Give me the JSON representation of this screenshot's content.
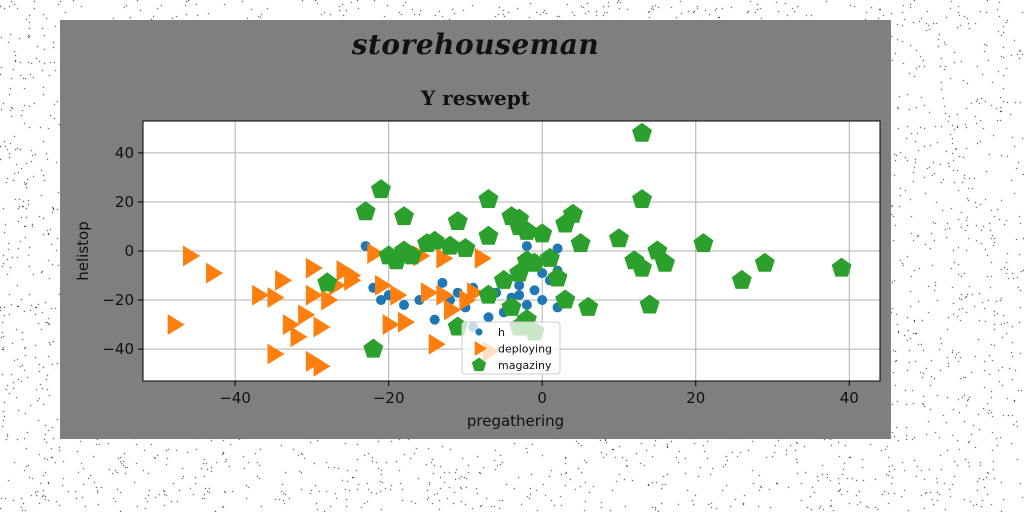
{
  "figure": {
    "suptitle": "storehouseman",
    "background": "#7f7f7f"
  },
  "chart_data": {
    "type": "scatter",
    "title": "Y reswept",
    "xlabel": "pregathering",
    "ylabel": "helistop",
    "xlim": [
      -52,
      44
    ],
    "ylim": [
      -53,
      53
    ],
    "xticks": [
      -40,
      -20,
      0,
      20,
      40
    ],
    "yticks": [
      -40,
      -20,
      0,
      20,
      40
    ],
    "grid": true,
    "legend_position": "lower-center",
    "series": [
      {
        "name": "h",
        "marker": "circle",
        "color": "#1f77b4",
        "points": [
          [
            -23,
            2
          ],
          [
            -22,
            -15
          ],
          [
            -21,
            -20
          ],
          [
            -20,
            -18
          ],
          [
            -18,
            -22
          ],
          [
            -16,
            -20
          ],
          [
            -14,
            -28
          ],
          [
            -13,
            -13
          ],
          [
            -12,
            -20
          ],
          [
            -11,
            -17
          ],
          [
            -10,
            -23
          ],
          [
            -9,
            -15
          ],
          [
            -6,
            -17
          ],
          [
            -5,
            -25
          ],
          [
            -4,
            -19
          ],
          [
            -3,
            -14
          ],
          [
            -3,
            -18
          ],
          [
            -2,
            -22
          ],
          [
            -2,
            2
          ],
          [
            -1,
            -6
          ],
          [
            -1,
            -16
          ],
          [
            0,
            -9
          ],
          [
            0,
            -20
          ],
          [
            1,
            -12
          ],
          [
            1,
            -4
          ],
          [
            2,
            -8
          ],
          [
            2,
            -23
          ],
          [
            2,
            1
          ],
          [
            -7,
            -27
          ],
          [
            -9,
            -31
          ]
        ]
      },
      {
        "name": "deploying",
        "marker": "triangle-right",
        "color": "#ff7f0e",
        "points": [
          [
            -48,
            -30
          ],
          [
            -46,
            -2
          ],
          [
            -43,
            -9
          ],
          [
            -37,
            -18
          ],
          [
            -35,
            -19
          ],
          [
            -35,
            -42
          ],
          [
            -34,
            -12
          ],
          [
            -33,
            -30
          ],
          [
            -32,
            -35
          ],
          [
            -31,
            -26
          ],
          [
            -30,
            -7
          ],
          [
            -30,
            -18
          ],
          [
            -30,
            -45
          ],
          [
            -29,
            -31
          ],
          [
            -29,
            -47
          ],
          [
            -28,
            -20
          ],
          [
            -27,
            -14
          ],
          [
            -26,
            -8
          ],
          [
            -25,
            -12
          ],
          [
            -22,
            -1
          ],
          [
            -21,
            -14
          ],
          [
            -20,
            -30
          ],
          [
            -19,
            -18
          ],
          [
            -18,
            -29
          ],
          [
            -16,
            -2
          ],
          [
            -15,
            -17
          ],
          [
            -14,
            -38
          ],
          [
            -13,
            -18
          ],
          [
            -12,
            -24
          ],
          [
            -10,
            -20
          ],
          [
            -9,
            -17
          ],
          [
            -8,
            -3
          ],
          [
            -7,
            -41
          ],
          [
            -13,
            -3
          ],
          [
            -25,
            -10
          ]
        ]
      },
      {
        "name": "magaziny",
        "marker": "pentagon",
        "color": "#2ca02c",
        "points": [
          [
            13,
            48
          ],
          [
            -21,
            25
          ],
          [
            -7,
            21
          ],
          [
            13,
            21
          ],
          [
            -23,
            16
          ],
          [
            -18,
            14
          ],
          [
            -11,
            12
          ],
          [
            -3,
            13
          ],
          [
            -3,
            10
          ],
          [
            -2,
            8
          ],
          [
            0,
            7
          ],
          [
            3,
            11
          ],
          [
            4,
            15
          ],
          [
            5,
            3
          ],
          [
            10,
            5
          ],
          [
            -7,
            6
          ],
          [
            -15,
            3
          ],
          [
            -14,
            4
          ],
          [
            -12,
            2
          ],
          [
            -10,
            1
          ],
          [
            -18,
            0
          ],
          [
            -17,
            -2
          ],
          [
            -19,
            -4
          ],
          [
            15,
            0
          ],
          [
            21,
            3
          ],
          [
            12,
            -4
          ],
          [
            13,
            -7
          ],
          [
            16,
            -5
          ],
          [
            39,
            -7
          ],
          [
            29,
            -5
          ],
          [
            26,
            -12
          ],
          [
            14,
            -22
          ],
          [
            2,
            -11
          ],
          [
            -1,
            -5
          ],
          [
            -3,
            -9
          ],
          [
            -5,
            -12
          ],
          [
            -7,
            -18
          ],
          [
            -4,
            -23
          ],
          [
            -2,
            -28
          ],
          [
            -3,
            -31
          ],
          [
            -1,
            -33
          ],
          [
            3,
            -20
          ],
          [
            6,
            -23
          ],
          [
            -22,
            -40
          ],
          [
            -11,
            -31
          ],
          [
            -28,
            -13
          ],
          [
            1,
            -3
          ],
          [
            -2,
            -4
          ],
          [
            -20,
            -2
          ],
          [
            -4,
            14
          ]
        ]
      }
    ]
  }
}
